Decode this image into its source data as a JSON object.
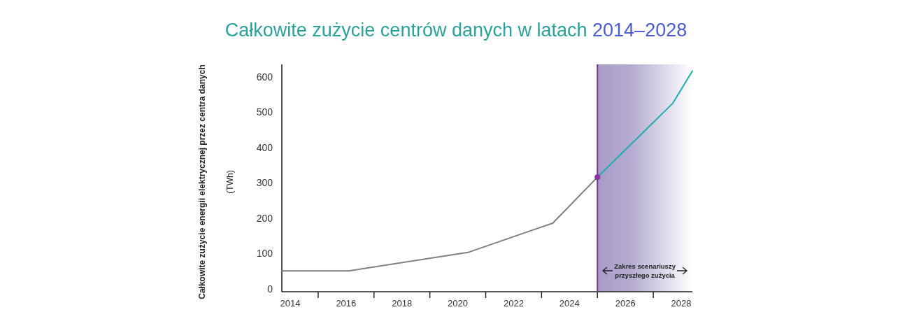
{
  "chart_data": {
    "type": "line",
    "title": "Całkowite zużycie centrów danych w latach 2014–2028",
    "ylabel": "Całkowite zużycie energii elektrycznej przez centra danych (TWh)",
    "xlim": [
      2013.7,
      2028.4
    ],
    "ylim": [
      -8,
      635
    ],
    "xticks": [
      2014,
      {
        "value": 2015,
        "label": null
      },
      2016,
      {
        "value": 2017,
        "label": null
      },
      2018,
      {
        "value": 2019,
        "label": null
      },
      2020,
      {
        "value": 2021,
        "label": null
      },
      2022,
      {
        "value": 2023,
        "label": null
      },
      2024,
      {
        "value": 2025,
        "label": null
      },
      2026,
      {
        "value": 2027,
        "label": null
      },
      2028
    ],
    "yticks": [
      0,
      100,
      200,
      300,
      400,
      500,
      600
    ],
    "grid": false,
    "series": [
      {
        "color": "#808080",
        "x": [
          2013.7,
          2016.1,
          2020.4,
          2023.4,
          2025
        ],
        "values": [
          51,
          51,
          104,
          186,
          316
        ]
      },
      {
        "color": "#1aacb0",
        "x": [
          2025,
          2027.7,
          2028.4
        ],
        "values": [
          316,
          525,
          616
        ]
      },
      {
        "type": "scatter",
        "color": "#8e2ea0",
        "x": [
          2025
        ],
        "values": [
          316
        ]
      }
    ],
    "ref_lines": [
      {
        "axis": "x",
        "value": 2025,
        "color": "#7b2d9a"
      }
    ],
    "bands": [
      {
        "axis": "x",
        "from": 2025,
        "to": 2028.4,
        "color": "#a79cc8"
      }
    ],
    "annotations": [
      "Zakres scenariuszy przyszłego zużycia"
    ]
  }
}
